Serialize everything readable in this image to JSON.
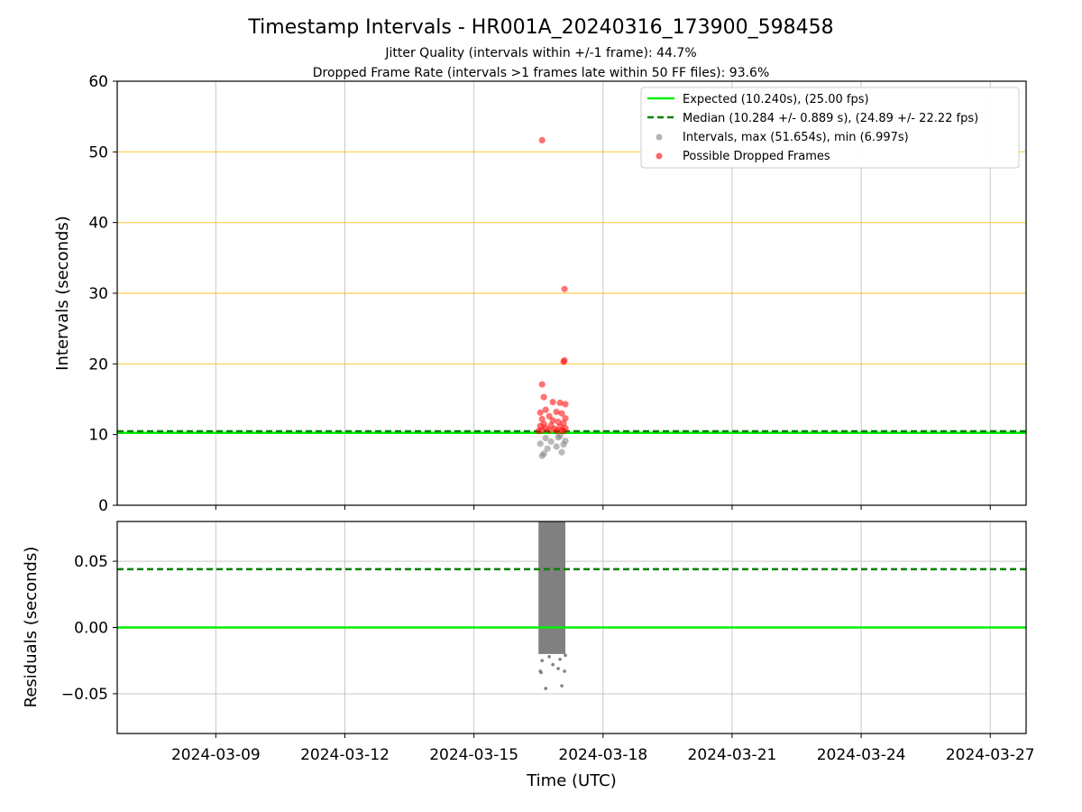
{
  "chart_data": [
    {
      "type": "scatter",
      "title": "Timestamp Intervals - HR001A_20240316_173900_598458",
      "subtitles": [
        "Jitter Quality (intervals within +/-1 frame): 44.7%",
        "Dropped Frame Rate (intervals >1 frames late within 50 FF files): 93.6%"
      ],
      "ylabel": "Intervals (seconds)",
      "ylim": [
        0,
        60
      ],
      "yticks": [
        "0",
        "10",
        "20",
        "30",
        "40",
        "50",
        "60"
      ],
      "xlim": [
        "2024-03-06T17:00",
        "2024-03-27T20:00"
      ],
      "grid": true,
      "reference_lines": {
        "orange_levels": [
          20,
          30,
          40,
          50
        ],
        "expected": 10.24,
        "median": 10.284
      },
      "legend_position": "top-right",
      "legend": [
        "Expected (10.240s), (25.00 fps)",
        "Median (10.284 +/- 0.889 s), (24.89 +/- 22.22 fps)",
        "Intervals, max (51.654s), min (6.997s)",
        "Possible Dropped Frames"
      ],
      "series": [
        {
          "name": "Possible Dropped Frames",
          "color": "#ff0000",
          "points": [
            {
              "x": "2024-03-16T14:00",
              "y": 51.65
            },
            {
              "x": "2024-03-17T02:30",
              "y": 30.6
            },
            {
              "x": "2024-03-17T02:30",
              "y": 20.5
            },
            {
              "x": "2024-03-17T02:00",
              "y": 20.3
            },
            {
              "x": "2024-03-16T14:00",
              "y": 17.1
            },
            {
              "x": "2024-03-16T15:00",
              "y": 15.3
            },
            {
              "x": "2024-03-16T20:00",
              "y": 14.6
            },
            {
              "x": "2024-03-17T00:00",
              "y": 14.5
            },
            {
              "x": "2024-03-17T03:00",
              "y": 14.3
            },
            {
              "x": "2024-03-16T16:00",
              "y": 13.5
            },
            {
              "x": "2024-03-16T13:00",
              "y": 13.1
            },
            {
              "x": "2024-03-16T22:00",
              "y": 13.2
            },
            {
              "x": "2024-03-17T01:00",
              "y": 13.0
            },
            {
              "x": "2024-03-16T18:00",
              "y": 12.6
            },
            {
              "x": "2024-03-16T14:00",
              "y": 12.2
            },
            {
              "x": "2024-03-17T03:00",
              "y": 12.3
            },
            {
              "x": "2024-03-16T20:00",
              "y": 12.0
            },
            {
              "x": "2024-03-16T23:00",
              "y": 11.8
            },
            {
              "x": "2024-03-16T15:00",
              "y": 11.5
            },
            {
              "x": "2024-03-17T02:00",
              "y": 11.6
            },
            {
              "x": "2024-03-16T13:00",
              "y": 11.2
            },
            {
              "x": "2024-03-16T19:00",
              "y": 11.3
            },
            {
              "x": "2024-03-17T00:00",
              "y": 11.1
            },
            {
              "x": "2024-03-16T16:00",
              "y": 10.9
            },
            {
              "x": "2024-03-16T21:00",
              "y": 10.8
            },
            {
              "x": "2024-03-17T03:00",
              "y": 10.9
            },
            {
              "x": "2024-03-16T14:00",
              "y": 10.6
            },
            {
              "x": "2024-03-16T18:00",
              "y": 10.6
            },
            {
              "x": "2024-03-17T01:00",
              "y": 10.6
            },
            {
              "x": "2024-03-16T12:00",
              "y": 10.5
            },
            {
              "x": "2024-03-16T22:00",
              "y": 10.5
            },
            {
              "x": "2024-03-17T02:00",
              "y": 10.5
            }
          ]
        },
        {
          "name": "Intervals, max (51.654s), min (6.997s)",
          "color": "#808080",
          "points": [
            {
              "x": "2024-03-16T14:00",
              "y": 7.0
            },
            {
              "x": "2024-03-16T15:00",
              "y": 7.3
            },
            {
              "x": "2024-03-17T01:00",
              "y": 7.5
            },
            {
              "x": "2024-03-16T17:00",
              "y": 8.0
            },
            {
              "x": "2024-03-16T22:00",
              "y": 8.3
            },
            {
              "x": "2024-03-17T02:00",
              "y": 8.6
            },
            {
              "x": "2024-03-16T13:00",
              "y": 8.7
            },
            {
              "x": "2024-03-16T19:00",
              "y": 9.0
            },
            {
              "x": "2024-03-17T03:00",
              "y": 9.1
            },
            {
              "x": "2024-03-16T16:00",
              "y": 9.5
            },
            {
              "x": "2024-03-16T23:00",
              "y": 9.6
            },
            {
              "x": "2024-03-17T00:00",
              "y": 9.8
            }
          ]
        }
      ]
    },
    {
      "type": "scatter",
      "ylabel": "Residuals (seconds)",
      "xlabel": "Time (UTC)",
      "ylim": [
        -0.08,
        0.08
      ],
      "yticks": [
        "−0.05",
        "0.00",
        "0.05"
      ],
      "xticks": [
        "2024-03-09",
        "2024-03-12",
        "2024-03-15",
        "2024-03-18",
        "2024-03-21",
        "2024-03-24",
        "2024-03-27"
      ],
      "xlim": [
        "2024-03-06T17:00",
        "2024-03-27T20:00"
      ],
      "grid": true,
      "reference_lines": {
        "expected": 0.0,
        "median": 0.044
      },
      "residual_band": {
        "x_start": "2024-03-16T12:00",
        "x_end": "2024-03-17T03:00",
        "y_min": -0.02,
        "y_max": 0.08
      },
      "series": [
        {
          "name": "",
          "color": "#808080",
          "points": [
            {
              "x": "2024-03-16T13:00",
              "y": -0.033
            },
            {
              "x": "2024-03-16T13:30",
              "y": -0.034
            },
            {
              "x": "2024-03-17T02:30",
              "y": -0.033
            },
            {
              "x": "2024-03-16T23:00",
              "y": -0.031
            },
            {
              "x": "2024-03-16T16:00",
              "y": -0.046
            },
            {
              "x": "2024-03-17T01:00",
              "y": -0.044
            },
            {
              "x": "2024-03-16T20:00",
              "y": -0.028
            },
            {
              "x": "2024-03-16T14:00",
              "y": -0.025
            },
            {
              "x": "2024-03-17T00:00",
              "y": -0.024
            },
            {
              "x": "2024-03-16T18:00",
              "y": -0.022
            },
            {
              "x": "2024-03-17T03:00",
              "y": -0.021
            }
          ]
        }
      ]
    }
  ],
  "colors": {
    "expected": "#00ee00",
    "median": "#008000",
    "orange_lines": "#ffb700",
    "grid": "#b0b0b0"
  }
}
